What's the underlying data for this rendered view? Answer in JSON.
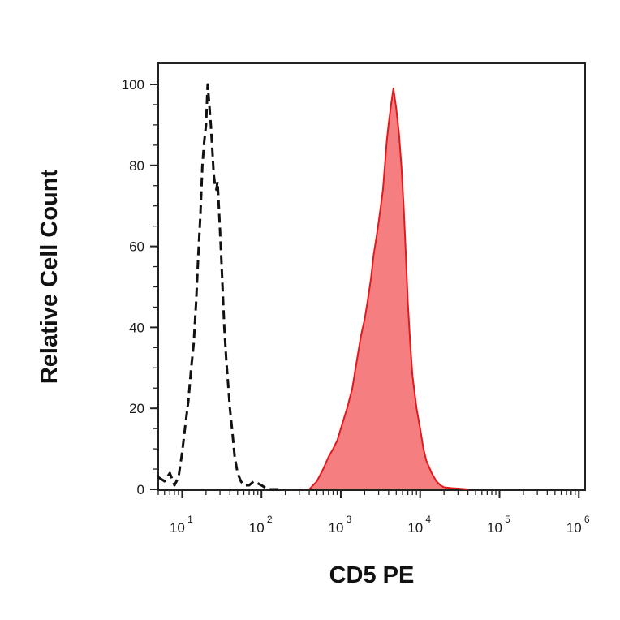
{
  "chart_data": {
    "type": "area",
    "title": "",
    "xlabel": "CD5 PE",
    "ylabel": "Relative Cell Count",
    "x_scale": "log",
    "xlim": [
      5,
      1200000
    ],
    "ylim": [
      0,
      100
    ],
    "x_ticks": [
      {
        "base": "10",
        "exp": "1",
        "value": 10
      },
      {
        "base": "10",
        "exp": "2",
        "value": 100
      },
      {
        "base": "10",
        "exp": "3",
        "value": 1000
      },
      {
        "base": "10",
        "exp": "4",
        "value": 10000
      },
      {
        "base": "10",
        "exp": "5",
        "value": 100000
      },
      {
        "base": "10",
        "exp": "6",
        "value": 1000000
      }
    ],
    "y_ticks": [
      "0",
      "20",
      "40",
      "60",
      "80",
      "100"
    ],
    "grid": false,
    "series": [
      {
        "style": "dashed-outline",
        "color": "#111111",
        "x": [
          5,
          6,
          7,
          8,
          9,
          10,
          11,
          12,
          13,
          14,
          15,
          16,
          17,
          18,
          19,
          20,
          21,
          22,
          23,
          24,
          25,
          26,
          27,
          28,
          29,
          30,
          31,
          32,
          33,
          34,
          35,
          36,
          38,
          40,
          43,
          46,
          50,
          55,
          60,
          70,
          80,
          100,
          120,
          140,
          170
        ],
        "y": [
          3,
          2,
          4,
          1,
          3,
          9,
          16,
          22,
          30,
          36,
          46,
          58,
          68,
          80,
          86,
          90,
          100,
          95,
          90,
          84,
          78,
          75,
          74,
          76,
          70,
          64,
          58,
          52,
          46,
          40,
          36,
          32,
          26,
          20,
          14,
          8,
          4,
          2,
          1,
          1,
          2,
          1,
          0,
          0,
          0
        ]
      },
      {
        "style": "filled",
        "color": "#e3191c",
        "fill": "#f57f80",
        "x": [
          400,
          500,
          600,
          700,
          800,
          900,
          1000,
          1200,
          1400,
          1600,
          1800,
          2000,
          2200,
          2400,
          2600,
          2800,
          3000,
          3200,
          3400,
          3600,
          3800,
          4000,
          4300,
          4600,
          5000,
          5400,
          5800,
          6200,
          6600,
          7000,
          7500,
          8000,
          9000,
          10000,
          11000,
          12000,
          14000,
          16000,
          18000,
          20000,
          25000,
          30000,
          40000
        ],
        "y": [
          0,
          2,
          5,
          8,
          10,
          12,
          15,
          20,
          25,
          32,
          38,
          42,
          47,
          52,
          58,
          62,
          66,
          70,
          74,
          80,
          86,
          90,
          95,
          99,
          94,
          88,
          80,
          70,
          58,
          46,
          36,
          28,
          20,
          15,
          10,
          7,
          4,
          2,
          1,
          0.5,
          0.3,
          0.2,
          0
        ]
      }
    ]
  }
}
